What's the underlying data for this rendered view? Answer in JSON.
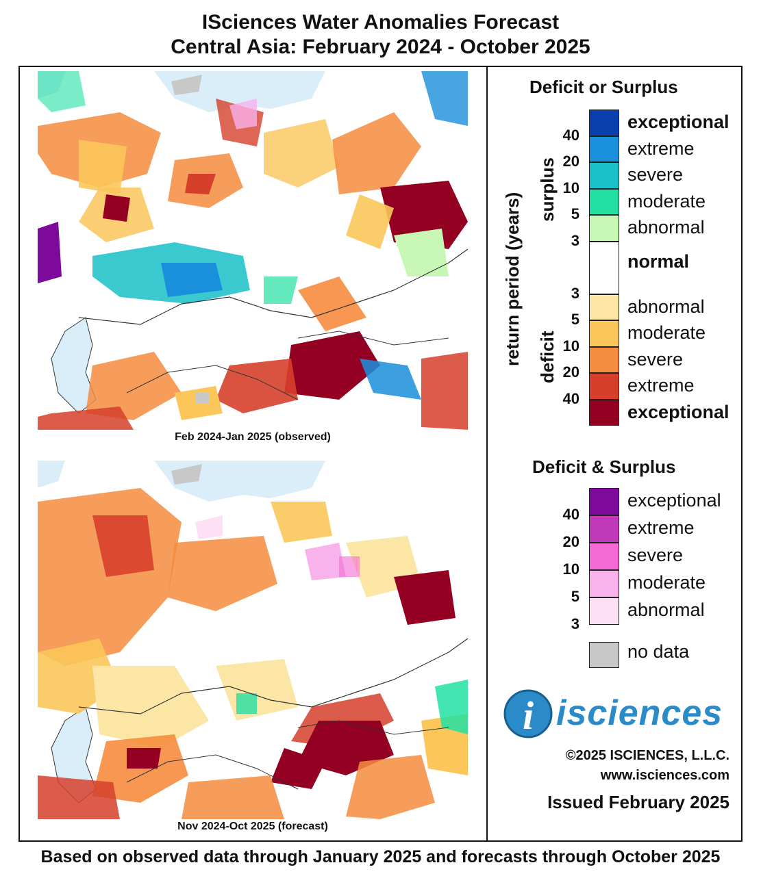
{
  "title": {
    "line1": "ISciences Water Anomalies Forecast",
    "line2": "Central Asia: February 2024 - October 2025"
  },
  "maps": [
    {
      "caption": "Feb 2024-Jan 2025 (observed)",
      "period": "observed"
    },
    {
      "caption": "Nov 2024-Oct 2025 (forecast)",
      "period": "forecast"
    }
  ],
  "legend": {
    "ds_title": "Deficit or Surplus",
    "axis_label": "return period (years)",
    "surplus_label": "surplus",
    "deficit_label": "deficit",
    "surplus_levels": [
      {
        "label": "exceptional",
        "color": "#0a3fae"
      },
      {
        "label": "extreme",
        "color": "#1a8fdb"
      },
      {
        "label": "severe",
        "color": "#19c0c8"
      },
      {
        "label": "moderate",
        "color": "#22e0a3"
      },
      {
        "label": "abnormal",
        "color": "#c8f7b5"
      }
    ],
    "normal_label": "normal",
    "deficit_levels": [
      {
        "label": "abnormal",
        "color": "#fce6a6"
      },
      {
        "label": "moderate",
        "color": "#fbc65a"
      },
      {
        "label": "severe",
        "color": "#f68c3e"
      },
      {
        "label": "extreme",
        "color": "#d6402b"
      },
      {
        "label": "exceptional",
        "color": "#930021"
      }
    ],
    "surplus_numbers": [
      "40",
      "20",
      "10",
      "5",
      "3"
    ],
    "deficit_numbers": [
      "3",
      "5",
      "10",
      "20",
      "40"
    ],
    "both_title": "Deficit & Surplus",
    "both_levels": [
      {
        "label": "exceptional",
        "color": "#7d0a9a"
      },
      {
        "label": "extreme",
        "color": "#c13ab9"
      },
      {
        "label": "severe",
        "color": "#f56bd6"
      },
      {
        "label": "moderate",
        "color": "#f8b2ec"
      },
      {
        "label": "abnormal",
        "color": "#fde0f4"
      }
    ],
    "both_numbers": [
      "40",
      "20",
      "10",
      "5",
      "3"
    ],
    "nodata_label": "no data",
    "nodata_color": "#c8c8c8"
  },
  "logo": {
    "text": "isciences"
  },
  "copyright": "©2025 ISCIENCES, L.L.C.",
  "website": "www.isciences.com",
  "issued": "Issued February 2025",
  "footer": "Based on observed data through January 2025 and forecasts through October 2025"
}
